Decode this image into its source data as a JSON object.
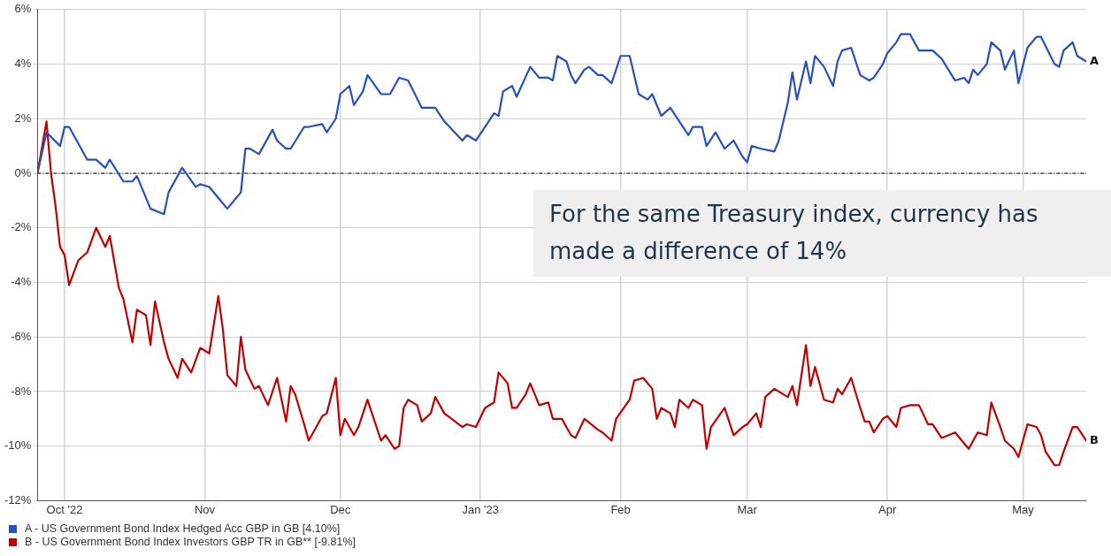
{
  "chart_data": {
    "type": "line",
    "xlim": [
      "2022-09-25",
      "2023-05-15"
    ],
    "xticks": [
      {
        "value": "2022-10-01",
        "label": "Oct '22"
      },
      {
        "value": "2022-11-01",
        "label": "Nov"
      },
      {
        "value": "2022-12-01",
        "label": "Dec"
      },
      {
        "value": "2023-01-01",
        "label": "Jan '23"
      },
      {
        "value": "2023-02-01",
        "label": "Feb"
      },
      {
        "value": "2023-03-01",
        "label": "Mar"
      },
      {
        "value": "2023-04-01",
        "label": "Apr"
      },
      {
        "value": "2023-05-01",
        "label": "May"
      }
    ],
    "ylim": [
      -12,
      6
    ],
    "yticks": [
      {
        "value": -12,
        "label": "-12%"
      },
      {
        "value": -10,
        "label": "-10%"
      },
      {
        "value": -8,
        "label": "-8%"
      },
      {
        "value": -6,
        "label": "-6%"
      },
      {
        "value": -4,
        "label": "-4%"
      },
      {
        "value": -2,
        "label": "-2%"
      },
      {
        "value": 0,
        "label": "0%"
      },
      {
        "value": 2,
        "label": "2%"
      },
      {
        "value": 4,
        "label": "4%"
      },
      {
        "value": 6,
        "label": "6%"
      }
    ],
    "grid": true,
    "legend": "bottom",
    "marker": "none",
    "line_style": "solid",
    "ref_lines": [
      {
        "axis": "y",
        "value": 0,
        "color": "#000000",
        "line_style": "dashed"
      }
    ],
    "annotations": [
      "For the same Treasury index, currency has made a difference of 14%",
      {
        "text": "A",
        "x": "2023-05-15",
        "y": 4.1
      },
      {
        "text": "B",
        "x": "2023-05-15",
        "y": -9.8
      }
    ],
    "series": [
      {
        "name": "A - US Government Bond Index Hedged Acc GBP in GB [4.10%]",
        "color": "#2850b8",
        "x": [
          "2022-09-25",
          "2022-09-27",
          "2022-09-30",
          "2022-10-01",
          "2022-10-02",
          "2022-10-06",
          "2022-10-08",
          "2022-10-10",
          "2022-10-11",
          "2022-10-14",
          "2022-10-16",
          "2022-10-17",
          "2022-10-20",
          "2022-10-23",
          "2022-10-24",
          "2022-10-27",
          "2022-10-30",
          "2022-10-31",
          "2022-11-02",
          "2022-11-04",
          "2022-11-06",
          "2022-11-08",
          "2022-11-09",
          "2022-11-10",
          "2022-11-11",
          "2022-11-13",
          "2022-11-16",
          "2022-11-17",
          "2022-11-19",
          "2022-11-20",
          "2022-11-23",
          "2022-11-24",
          "2022-11-27",
          "2022-11-28",
          "2022-11-30",
          "2022-12-01",
          "2022-12-03",
          "2022-12-04",
          "2022-12-06",
          "2022-12-07",
          "2022-12-10",
          "2022-12-12",
          "2022-12-14",
          "2022-12-16",
          "2022-12-19",
          "2022-12-22",
          "2022-12-24",
          "2022-12-28",
          "2022-12-29",
          "2022-12-31",
          "2023-01-02",
          "2023-01-04",
          "2023-01-05",
          "2023-01-06",
          "2023-01-08",
          "2023-01-09",
          "2023-01-12",
          "2023-01-14",
          "2023-01-16",
          "2023-01-17",
          "2023-01-18",
          "2023-01-20",
          "2023-01-21",
          "2023-01-22",
          "2023-01-24",
          "2023-01-25",
          "2023-01-27",
          "2023-01-28",
          "2023-01-30",
          "2023-02-01",
          "2023-02-03",
          "2023-02-05",
          "2023-02-07",
          "2023-02-08",
          "2023-02-10",
          "2023-02-12",
          "2023-02-16",
          "2023-02-17",
          "2023-02-19",
          "2023-02-20",
          "2023-02-22",
          "2023-02-24",
          "2023-02-26",
          "2023-02-28",
          "2023-03-01",
          "2023-03-02",
          "2023-03-04",
          "2023-03-07",
          "2023-03-08",
          "2023-03-10",
          "2023-03-11",
          "2023-03-12",
          "2023-03-14",
          "2023-03-15",
          "2023-03-16",
          "2023-03-18",
          "2023-03-20",
          "2023-03-21",
          "2023-03-22",
          "2023-03-24",
          "2023-03-26",
          "2023-03-28",
          "2023-03-29",
          "2023-03-31",
          "2023-04-01",
          "2023-04-03",
          "2023-04-04",
          "2023-04-06",
          "2023-04-08",
          "2023-04-10",
          "2023-04-11",
          "2023-04-13",
          "2023-04-16",
          "2023-04-18",
          "2023-04-19",
          "2023-04-20",
          "2023-04-21",
          "2023-04-23",
          "2023-04-24",
          "2023-04-26",
          "2023-04-27",
          "2023-04-29",
          "2023-04-30",
          "2023-05-02",
          "2023-05-04",
          "2023-05-05",
          "2023-05-08",
          "2023-05-09",
          "2023-05-10",
          "2023-05-12",
          "2023-05-13",
          "2023-05-15"
        ],
        "values": [
          0,
          1.5,
          1,
          1.7,
          1.7,
          0.5,
          0.5,
          0.2,
          0.5,
          -0.3,
          -0.3,
          -0.1,
          -1.3,
          -1.5,
          -0.7,
          0.2,
          -0.5,
          -0.4,
          -0.5,
          -0.9,
          -1.3,
          -0.9,
          -0.7,
          0.9,
          0.9,
          0.7,
          1.6,
          1.2,
          0.9,
          0.9,
          1.7,
          1.7,
          1.8,
          1.5,
          2,
          2.9,
          3.2,
          2.5,
          3,
          3.6,
          2.9,
          2.9,
          3.5,
          3.4,
          2.4,
          2.4,
          1.9,
          1.2,
          1.4,
          1.2,
          1.7,
          2.2,
          2.1,
          3,
          3.2,
          2.8,
          3.9,
          3.5,
          3.5,
          3.4,
          4.3,
          4.1,
          3.6,
          3.3,
          3.8,
          3.9,
          3.6,
          3.6,
          3.3,
          4.3,
          4.3,
          2.9,
          2.7,
          2.9,
          2.1,
          2.4,
          1.4,
          1.7,
          1.7,
          1,
          1.5,
          0.9,
          1.2,
          0.6,
          0.4,
          1,
          0.9,
          0.8,
          1.2,
          2.6,
          3.7,
          2.7,
          4.1,
          3.3,
          4.3,
          3.9,
          3.2,
          4.1,
          4.5,
          4.6,
          3.6,
          3.4,
          3.5,
          4,
          4.4,
          4.8,
          5.1,
          5.1,
          4.5,
          4.5,
          4.5,
          4.2,
          3.4,
          3.5,
          3.3,
          3.8,
          3.6,
          4,
          4.8,
          4.5,
          3.8,
          4.5,
          3.3,
          4.6,
          5,
          5,
          4,
          3.9,
          4.5,
          4.8,
          4.3,
          4.1
        ]
      },
      {
        "name": "B - US Government Bond Index Investors GBP TR in GB** [-9.81%]",
        "color": "#c00000",
        "x": [
          "2022-09-25",
          "2022-09-27",
          "2022-09-28",
          "2022-09-29",
          "2022-09-30",
          "2022-10-01",
          "2022-10-02",
          "2022-10-04",
          "2022-10-06",
          "2022-10-08",
          "2022-10-10",
          "2022-10-11",
          "2022-10-13",
          "2022-10-14",
          "2022-10-16",
          "2022-10-17",
          "2022-10-19",
          "2022-10-20",
          "2022-10-21",
          "2022-10-23",
          "2022-10-24",
          "2022-10-26",
          "2022-10-27",
          "2022-10-29",
          "2022-10-31",
          "2022-11-02",
          "2022-11-04",
          "2022-11-05",
          "2022-11-06",
          "2022-11-08",
          "2022-11-09",
          "2022-11-10",
          "2022-11-12",
          "2022-11-13",
          "2022-11-15",
          "2022-11-17",
          "2022-11-19",
          "2022-11-20",
          "2022-11-21",
          "2022-11-23",
          "2022-11-24",
          "2022-11-27",
          "2022-11-28",
          "2022-11-30",
          "2022-12-01",
          "2022-12-02",
          "2022-12-04",
          "2022-12-05",
          "2022-12-07",
          "2022-12-08",
          "2022-12-10",
          "2022-12-11",
          "2022-12-13",
          "2022-12-14",
          "2022-12-15",
          "2022-12-16",
          "2022-12-18",
          "2022-12-19",
          "2022-12-21",
          "2022-12-22",
          "2022-12-24",
          "2022-12-28",
          "2022-12-29",
          "2022-12-31",
          "2023-01-02",
          "2023-01-04",
          "2023-01-05",
          "2023-01-07",
          "2023-01-08",
          "2023-01-09",
          "2023-01-11",
          "2023-01-12",
          "2023-01-14",
          "2023-01-16",
          "2023-01-17",
          "2023-01-19",
          "2023-01-21",
          "2023-01-22",
          "2023-01-24",
          "2023-01-27",
          "2023-01-28",
          "2023-01-30",
          "2023-01-31",
          "2023-02-03",
          "2023-02-04",
          "2023-02-06",
          "2023-02-08",
          "2023-02-09",
          "2023-02-10",
          "2023-02-12",
          "2023-02-13",
          "2023-02-14",
          "2023-02-16",
          "2023-02-17",
          "2023-02-19",
          "2023-02-20",
          "2023-02-21",
          "2023-02-24",
          "2023-02-26",
          "2023-02-28",
          "2023-03-01",
          "2023-03-03",
          "2023-03-04",
          "2023-03-05",
          "2023-03-07",
          "2023-03-10",
          "2023-03-11",
          "2023-03-12",
          "2023-03-14",
          "2023-03-15",
          "2023-03-16",
          "2023-03-18",
          "2023-03-20",
          "2023-03-21",
          "2023-03-22",
          "2023-03-24",
          "2023-03-26",
          "2023-03-27",
          "2023-03-28",
          "2023-03-29",
          "2023-03-31",
          "2023-04-01",
          "2023-04-03",
          "2023-04-04",
          "2023-04-06",
          "2023-04-08",
          "2023-04-10",
          "2023-04-11",
          "2023-04-13",
          "2023-04-16",
          "2023-04-19",
          "2023-04-20",
          "2023-04-21",
          "2023-04-23",
          "2023-04-24",
          "2023-04-26",
          "2023-04-27",
          "2023-04-29",
          "2023-04-30",
          "2023-05-02",
          "2023-05-04",
          "2023-05-05",
          "2023-05-06",
          "2023-05-08",
          "2023-05-09",
          "2023-05-10",
          "2023-05-12",
          "2023-05-13",
          "2023-05-15"
        ],
        "values": [
          0,
          1.9,
          0,
          -1.2,
          -2.7,
          -3,
          -4.1,
          -3.2,
          -2.9,
          -2,
          -2.7,
          -2.3,
          -4.2,
          -4.6,
          -6.2,
          -5,
          -5.2,
          -6.3,
          -4.7,
          -6.2,
          -6.8,
          -7.5,
          -6.8,
          -7.3,
          -6.4,
          -6.6,
          -4.5,
          -5.7,
          -7.4,
          -7.8,
          -6,
          -7.2,
          -7.9,
          -7.8,
          -8.5,
          -7.5,
          -9.1,
          -7.8,
          -8.1,
          -9.2,
          -9.8,
          -8.9,
          -8.8,
          -7.5,
          -9.6,
          -9,
          -9.6,
          -9.3,
          -8.3,
          -8.8,
          -9.8,
          -9.6,
          -10.1,
          -10,
          -8.6,
          -8.3,
          -8.5,
          -9.1,
          -8.8,
          -8.2,
          -8.8,
          -9.3,
          -9.2,
          -9.3,
          -8.6,
          -8.4,
          -7.3,
          -7.7,
          -8.6,
          -8.6,
          -8.1,
          -7.7,
          -8.5,
          -8.4,
          -9,
          -9,
          -9.6,
          -9.7,
          -9,
          -9.4,
          -9.5,
          -9.8,
          -9,
          -8.3,
          -7.6,
          -7.5,
          -7.9,
          -9,
          -8.6,
          -8.8,
          -9.3,
          -8.3,
          -8.6,
          -8.3,
          -8.5,
          -10.1,
          -9.3,
          -8.6,
          -9.6,
          -9.3,
          -9.2,
          -8.8,
          -9.3,
          -8.2,
          -7.9,
          -8.2,
          -7.8,
          -8.5,
          -6.3,
          -7.8,
          -7.1,
          -8.3,
          -8.4,
          -7.9,
          -8.1,
          -7.5,
          -8.6,
          -9.1,
          -9.1,
          -9.5,
          -9,
          -8.9,
          -9.3,
          -8.6,
          -8.5,
          -8.5,
          -9.2,
          -9.2,
          -9.7,
          -9.5,
          -10.1,
          -9.8,
          -9.5,
          -9.6,
          -8.4,
          -9.3,
          -9.8,
          -10.1,
          -10.4,
          -9.2,
          -9.3,
          -9.6,
          -10.2,
          -10.7,
          -10.7,
          -10.2,
          -9.3,
          -9.3,
          -9.8
        ]
      }
    ]
  }
}
